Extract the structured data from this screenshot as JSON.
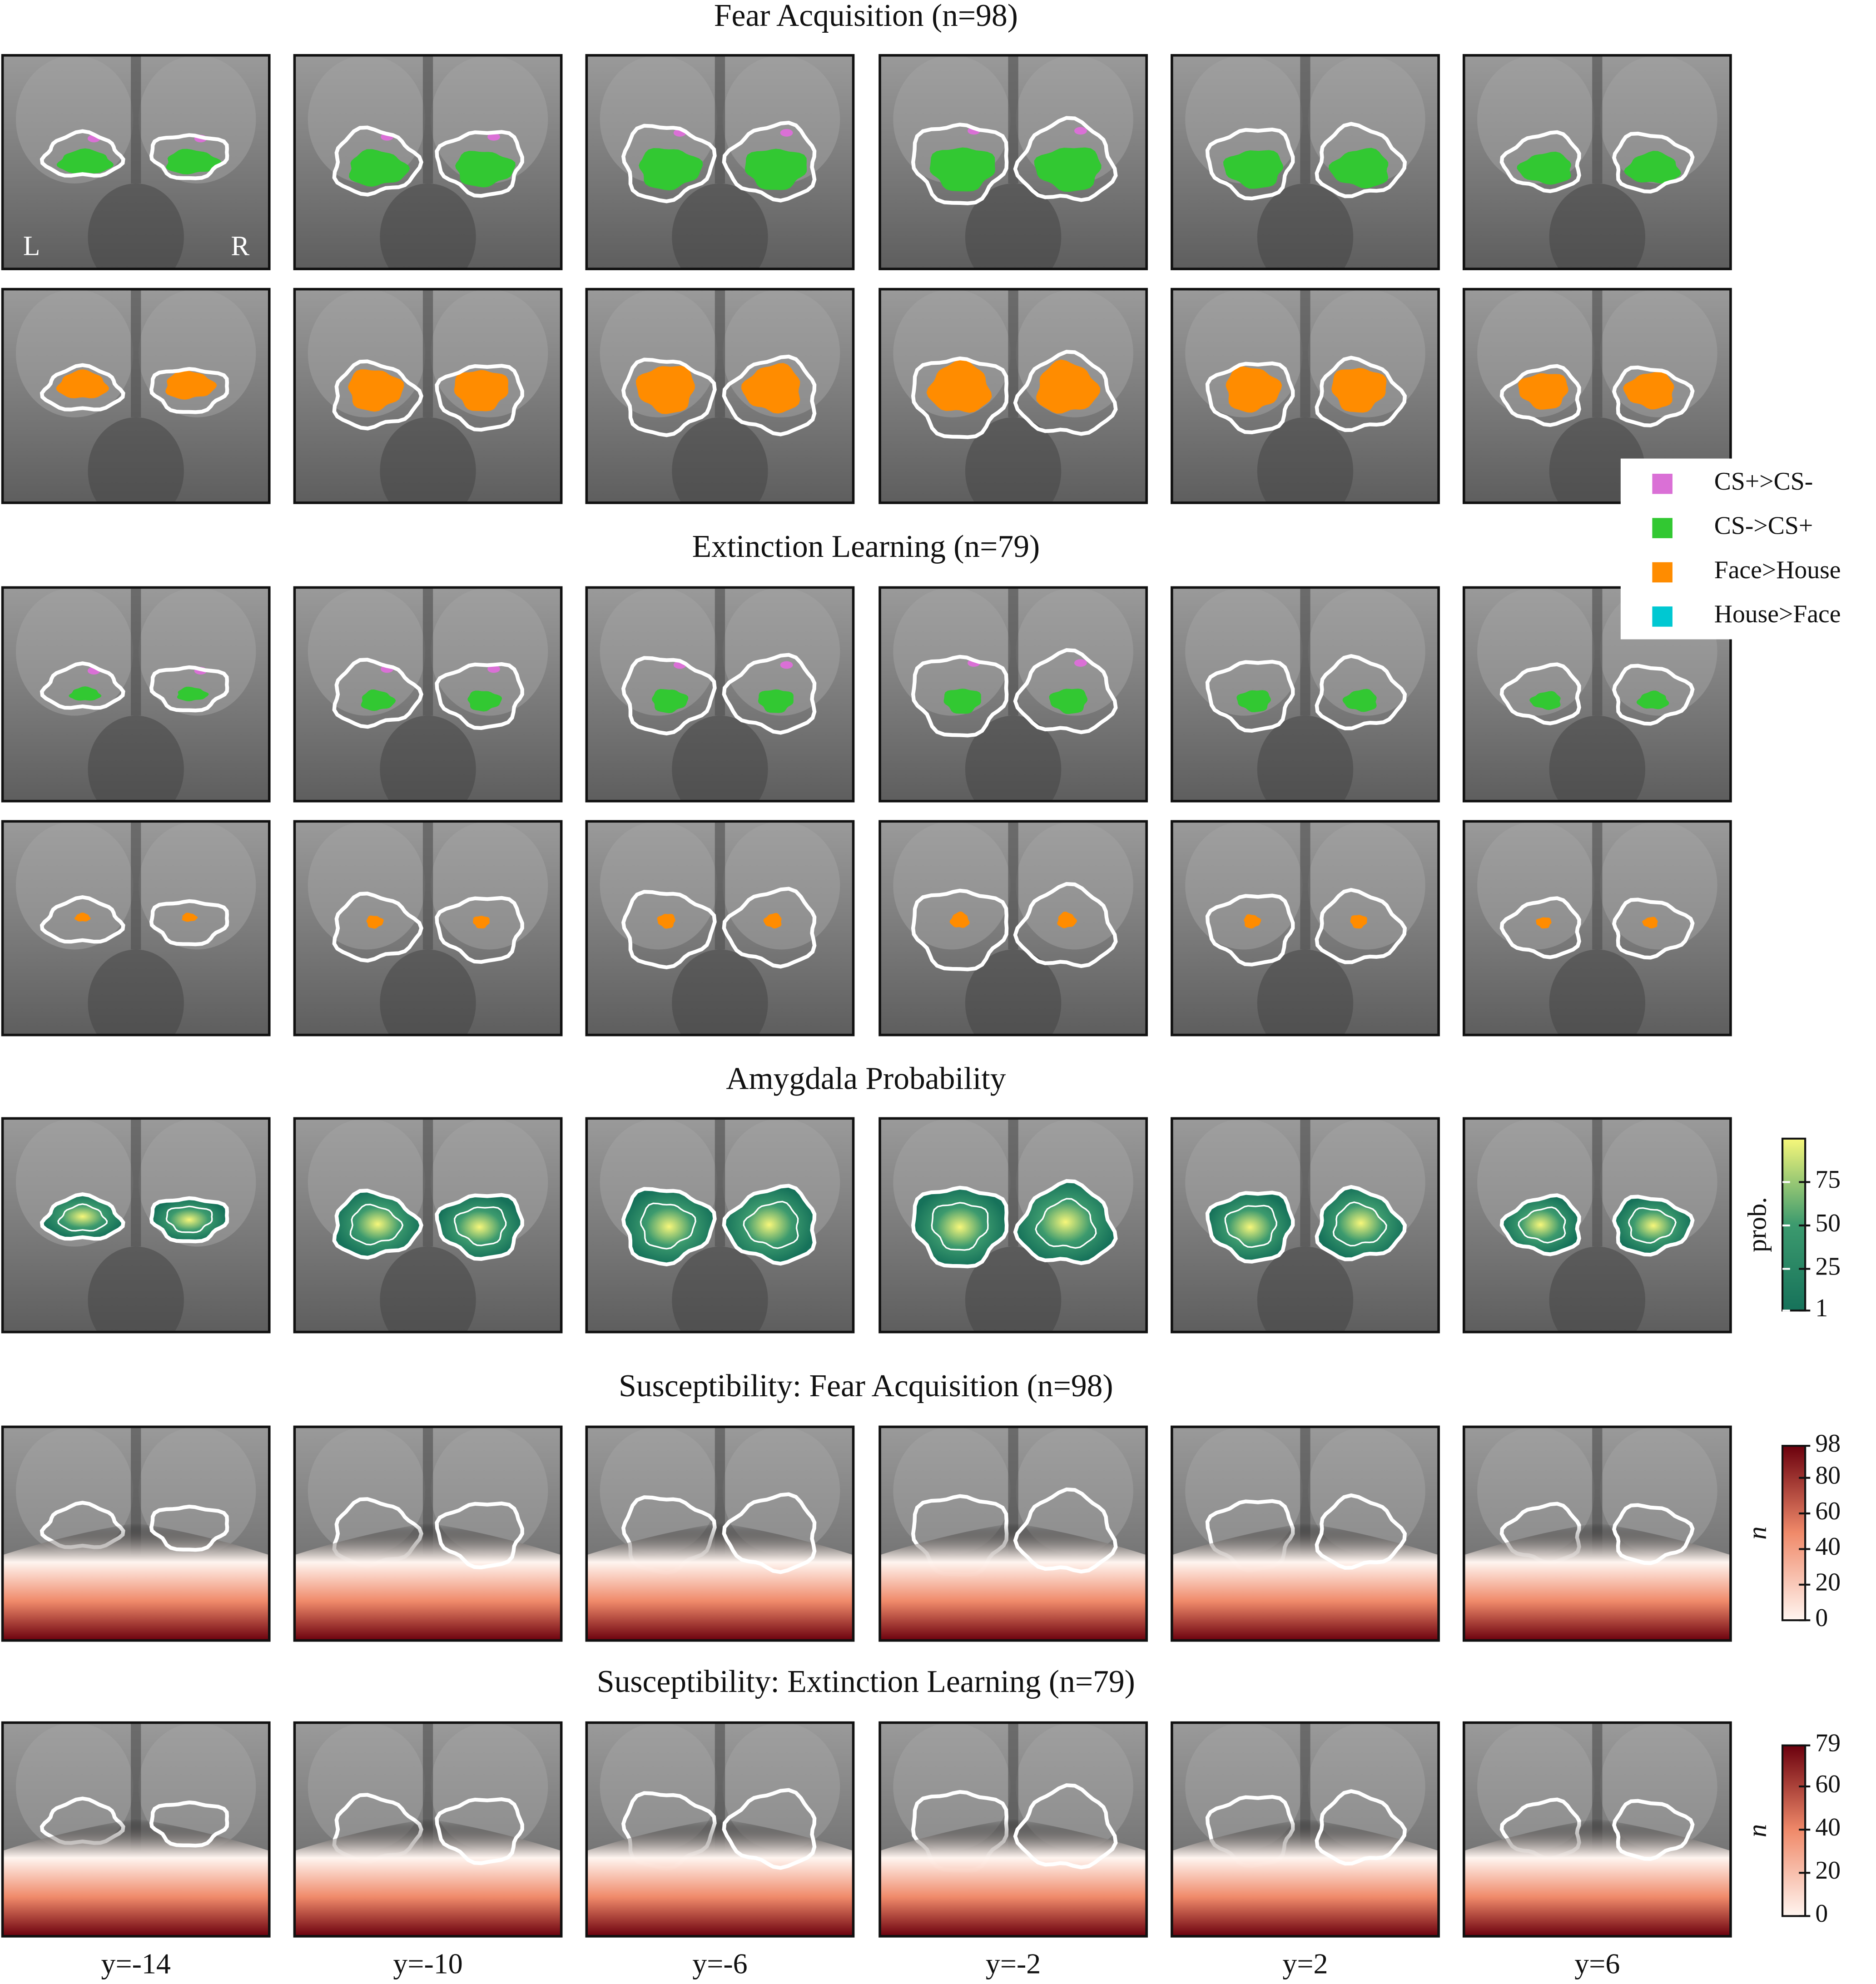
{
  "sections": [
    {
      "title": "Fear Acquisition (n=98)"
    },
    {
      "title": "Extinction Learning (n=79)"
    },
    {
      "title": "Amygdala Probability"
    },
    {
      "title": "Susceptibility: Fear Acquisition (n=98)"
    },
    {
      "title": "Susceptibility: Extinction Learning (n=79)"
    }
  ],
  "hemisphere_labels": [
    "L",
    "R"
  ],
  "columns": [
    "y=-14",
    "y=-10",
    "y=-6",
    "y=-2",
    "y=2",
    "y=6"
  ],
  "legend": [
    {
      "label": "CS+>CS-",
      "color": "#da70d6"
    },
    {
      "label": "CS->CS+",
      "color": "#32c832"
    },
    {
      "label": "Face>House",
      "color": "#ff8c00"
    },
    {
      "label": "House>Face",
      "color": "#00c8d2"
    }
  ],
  "colorbars": [
    {
      "label": "prob.",
      "lim": [
        1,
        100
      ],
      "ticks": [
        1,
        25,
        50,
        75
      ],
      "colors": [
        "#16725a",
        "#3c9a6e",
        "#f7f77a"
      ]
    },
    {
      "label": "n",
      "lim": [
        0,
        98
      ],
      "ticks": [
        0,
        20,
        40,
        60,
        80,
        98
      ],
      "colors": [
        "#fff5f0",
        "#f08a6a",
        "#6b000d"
      ]
    },
    {
      "label": "n",
      "lim": [
        0,
        79
      ],
      "ticks": [
        0,
        20,
        40,
        60,
        79
      ],
      "colors": [
        "#fff5f0",
        "#f08a6a",
        "#6b000d"
      ]
    }
  ]
}
